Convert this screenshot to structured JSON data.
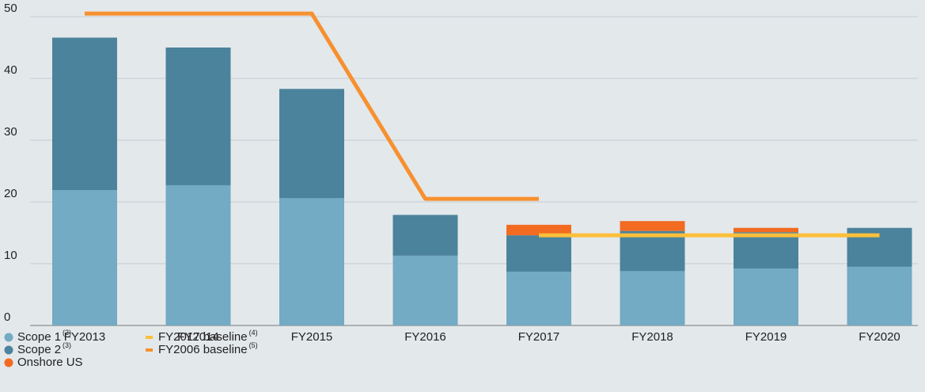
{
  "chart_data": {
    "type": "bar",
    "categories": [
      "FY2013",
      "FY2014",
      "FY2015",
      "FY2016",
      "FY2017",
      "FY2018",
      "FY2019",
      "FY2020"
    ],
    "series": [
      {
        "name": "Scope 1",
        "note": "(2)",
        "kind": "bar",
        "color": "#73aac4",
        "values": [
          21.9,
          22.7,
          20.6,
          11.3,
          8.7,
          8.8,
          9.2,
          9.5
        ]
      },
      {
        "name": "Scope 2",
        "note": "(3)",
        "kind": "bar",
        "color": "#4b839c",
        "values": [
          24.7,
          22.3,
          17.7,
          6.6,
          5.9,
          6.5,
          5.9,
          6.3
        ]
      },
      {
        "name": "Onshore US",
        "kind": "bar",
        "color": "#f26b21",
        "values": [
          null,
          null,
          null,
          null,
          1.7,
          1.6,
          0.7,
          null
        ]
      },
      {
        "name": "FY2017 baseline",
        "note": "(4)",
        "kind": "line",
        "color": "#fbbf3a",
        "values": [
          null,
          null,
          null,
          null,
          14.6,
          14.6,
          14.6,
          14.6
        ]
      },
      {
        "name": "FY2006 baseline",
        "note": "(5)",
        "kind": "line",
        "color": "#f7902f",
        "values": [
          50.5,
          50.5,
          50.5,
          20.5,
          20.5,
          null,
          null,
          null
        ]
      }
    ],
    "ylim": [
      0,
      50
    ],
    "yticks": [
      0,
      10,
      20,
      30,
      40,
      50
    ],
    "grid": true,
    "stacked": true
  }
}
